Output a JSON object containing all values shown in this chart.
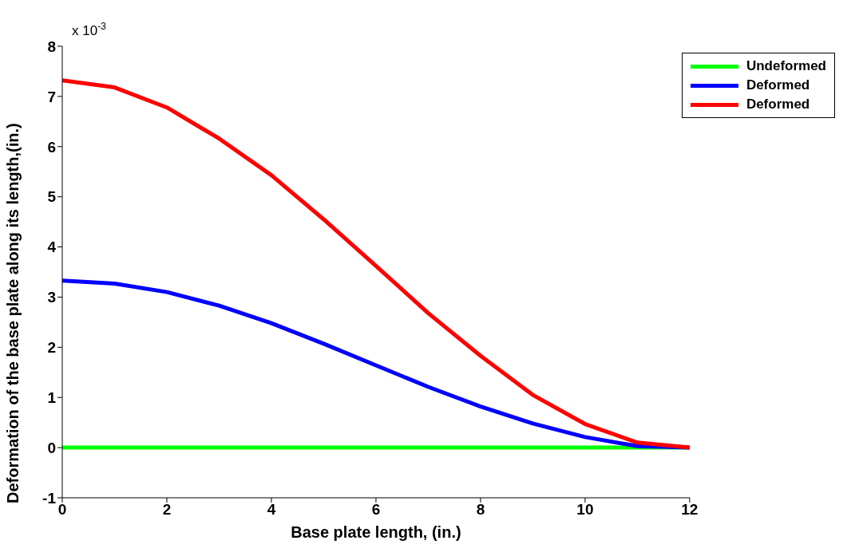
{
  "chart_data": {
    "type": "line",
    "xlabel": "Base plate length, (in.)",
    "ylabel": "Deformation of the base plate along its length,(in.)",
    "annotations": [
      "x 10$^{-3}$"
    ],
    "x": [
      0,
      1,
      2,
      3,
      4,
      5,
      6,
      7,
      8,
      9,
      10,
      11,
      12
    ],
    "series": [
      {
        "name": "Undeformed",
        "color": "#00ff00",
        "values": [
          0,
          0,
          0,
          0,
          0,
          0,
          0,
          0,
          0,
          0,
          0,
          0,
          0
        ]
      },
      {
        "name": "Deformed",
        "color": "#0000ff",
        "values": [
          3.33,
          3.27,
          3.1,
          2.83,
          2.48,
          2.07,
          1.64,
          1.21,
          0.82,
          0.48,
          0.21,
          0.03,
          0
        ]
      },
      {
        "name": "Deformed",
        "color": "#ff0000",
        "values": [
          7.32,
          7.18,
          6.78,
          6.16,
          5.43,
          4.55,
          3.62,
          2.68,
          1.83,
          1.05,
          0.47,
          0.1,
          0
        ]
      }
    ],
    "xlim": [
      0,
      12
    ],
    "xticks": [
      0,
      2,
      4,
      6,
      8,
      10,
      12
    ],
    "ylim": [
      -1,
      8
    ],
    "yticks": [
      -1,
      0,
      1,
      2,
      3,
      4,
      5,
      6,
      7,
      8
    ],
    "grid": false,
    "legend": "top right",
    "marker": "none",
    "line_style": "solid"
  }
}
